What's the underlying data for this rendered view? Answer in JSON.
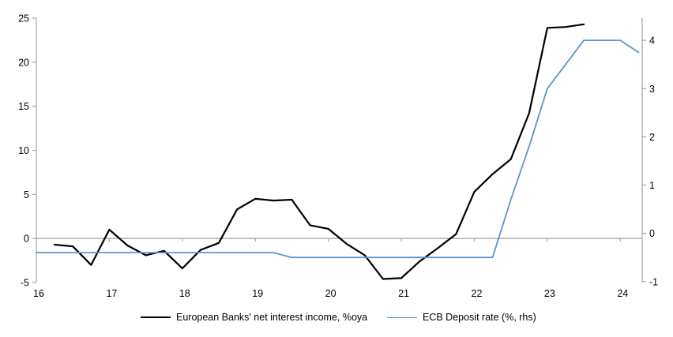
{
  "chart_data": {
    "type": "line",
    "title": "",
    "x_axis": {
      "ticks": [
        16,
        17,
        18,
        19,
        20,
        21,
        22,
        23,
        24
      ],
      "range": [
        16,
        24.3
      ]
    },
    "y_left": {
      "ticks": [
        25,
        20,
        15,
        10,
        5,
        0,
        -5
      ],
      "range": [
        -5,
        25
      ]
    },
    "y_right": {
      "ticks": [
        4,
        3,
        2,
        1,
        0,
        -1
      ],
      "range": [
        -1.02,
        4.46
      ]
    },
    "zero_line": 0,
    "series": [
      {
        "name": "European Banks' net interest income, %oya",
        "axis": "left",
        "color": "#000000",
        "width": 2.2,
        "x": [
          16.25,
          16.5,
          16.75,
          17.0,
          17.25,
          17.5,
          17.75,
          18.0,
          18.25,
          18.5,
          18.75,
          19.0,
          19.25,
          19.5,
          19.75,
          20.0,
          20.25,
          20.5,
          20.75,
          21.0,
          21.25,
          21.5,
          21.75,
          22.0,
          22.25,
          22.5,
          22.75,
          23.0,
          23.25,
          23.5
        ],
        "y": [
          -0.7,
          -0.9,
          -3.0,
          1.0,
          -0.8,
          -1.9,
          -1.4,
          -3.4,
          -1.3,
          -0.5,
          3.3,
          4.5,
          4.3,
          4.4,
          1.5,
          1.1,
          -0.6,
          -1.9,
          -4.6,
          -4.5,
          -2.6,
          -1.1,
          0.5,
          5.3,
          7.3,
          9.0,
          14.2,
          23.9,
          24.0,
          24.3
        ]
      },
      {
        "name": "ECB Deposit rate (%, rhs)",
        "axis": "right",
        "color": "#5e93cf",
        "width": 1.8,
        "x": [
          16.0,
          16.25,
          16.5,
          16.75,
          17.0,
          17.25,
          17.5,
          17.75,
          18.0,
          18.25,
          18.5,
          18.75,
          19.0,
          19.25,
          19.5,
          19.75,
          20.0,
          20.25,
          20.5,
          20.75,
          21.0,
          21.25,
          21.5,
          21.75,
          22.0,
          22.25,
          22.5,
          22.75,
          23.0,
          23.25,
          23.5,
          23.75,
          24.0,
          24.25
        ],
        "y": [
          -0.4,
          -0.4,
          -0.4,
          -0.4,
          -0.4,
          -0.4,
          -0.4,
          -0.4,
          -0.4,
          -0.4,
          -0.4,
          -0.4,
          -0.4,
          -0.4,
          -0.5,
          -0.5,
          -0.5,
          -0.5,
          -0.5,
          -0.5,
          -0.5,
          -0.5,
          -0.5,
          -0.5,
          -0.5,
          -0.5,
          0.7,
          1.8,
          3.0,
          3.5,
          4.0,
          4.0,
          4.0,
          3.75
        ]
      }
    ],
    "style": {
      "axis_color": "#a6a6a6",
      "label_color": "#000000",
      "background": "#ffffff"
    },
    "legend_position": "bottom"
  }
}
